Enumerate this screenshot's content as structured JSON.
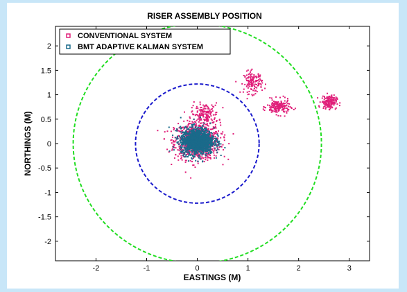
{
  "chart_data": {
    "type": "scatter",
    "title": "RISER ASSEMBLY POSITION",
    "xlabel": "EASTINGS (M)",
    "ylabel": "NORTHINGS (M)",
    "xlim": [
      -2.8,
      3.4
    ],
    "ylim": [
      -2.4,
      2.4
    ],
    "xticks": [
      -2,
      -1,
      0,
      1,
      2,
      3
    ],
    "yticks": [
      2,
      1.5,
      1,
      0.5,
      0,
      -0.5,
      -1,
      -1.5,
      -2
    ],
    "grid": false,
    "legend_position": "top-left",
    "series": [
      {
        "name": "CONVENTIONAL SYSTEM",
        "color": "#e0207a",
        "clusters": [
          {
            "cx": 0.0,
            "cy": 0.05,
            "sx": 0.3,
            "sy": 0.25,
            "n": 900
          },
          {
            "cx": 0.15,
            "cy": 0.6,
            "sx": 0.18,
            "sy": 0.15,
            "n": 160
          },
          {
            "cx": 1.1,
            "cy": 1.25,
            "sx": 0.12,
            "sy": 0.15,
            "n": 140
          },
          {
            "cx": 1.6,
            "cy": 0.75,
            "sx": 0.15,
            "sy": 0.1,
            "n": 180
          },
          {
            "cx": 2.6,
            "cy": 0.85,
            "sx": 0.1,
            "sy": 0.09,
            "n": 160
          }
        ]
      },
      {
        "name": "BMT ADAPTIVE KALMAN SYSTEM",
        "color": "#1a6a8a",
        "clusters": [
          {
            "cx": 0.0,
            "cy": 0.05,
            "sx": 0.22,
            "sy": 0.18,
            "n": 1400
          }
        ]
      }
    ],
    "circles": [
      {
        "name": "inner",
        "cx": 0,
        "cy": 0,
        "r": 1.22,
        "color": "#1a1acc"
      },
      {
        "name": "outer",
        "cx": 0,
        "cy": 0,
        "r": 2.45,
        "color": "#22dd22"
      }
    ]
  }
}
